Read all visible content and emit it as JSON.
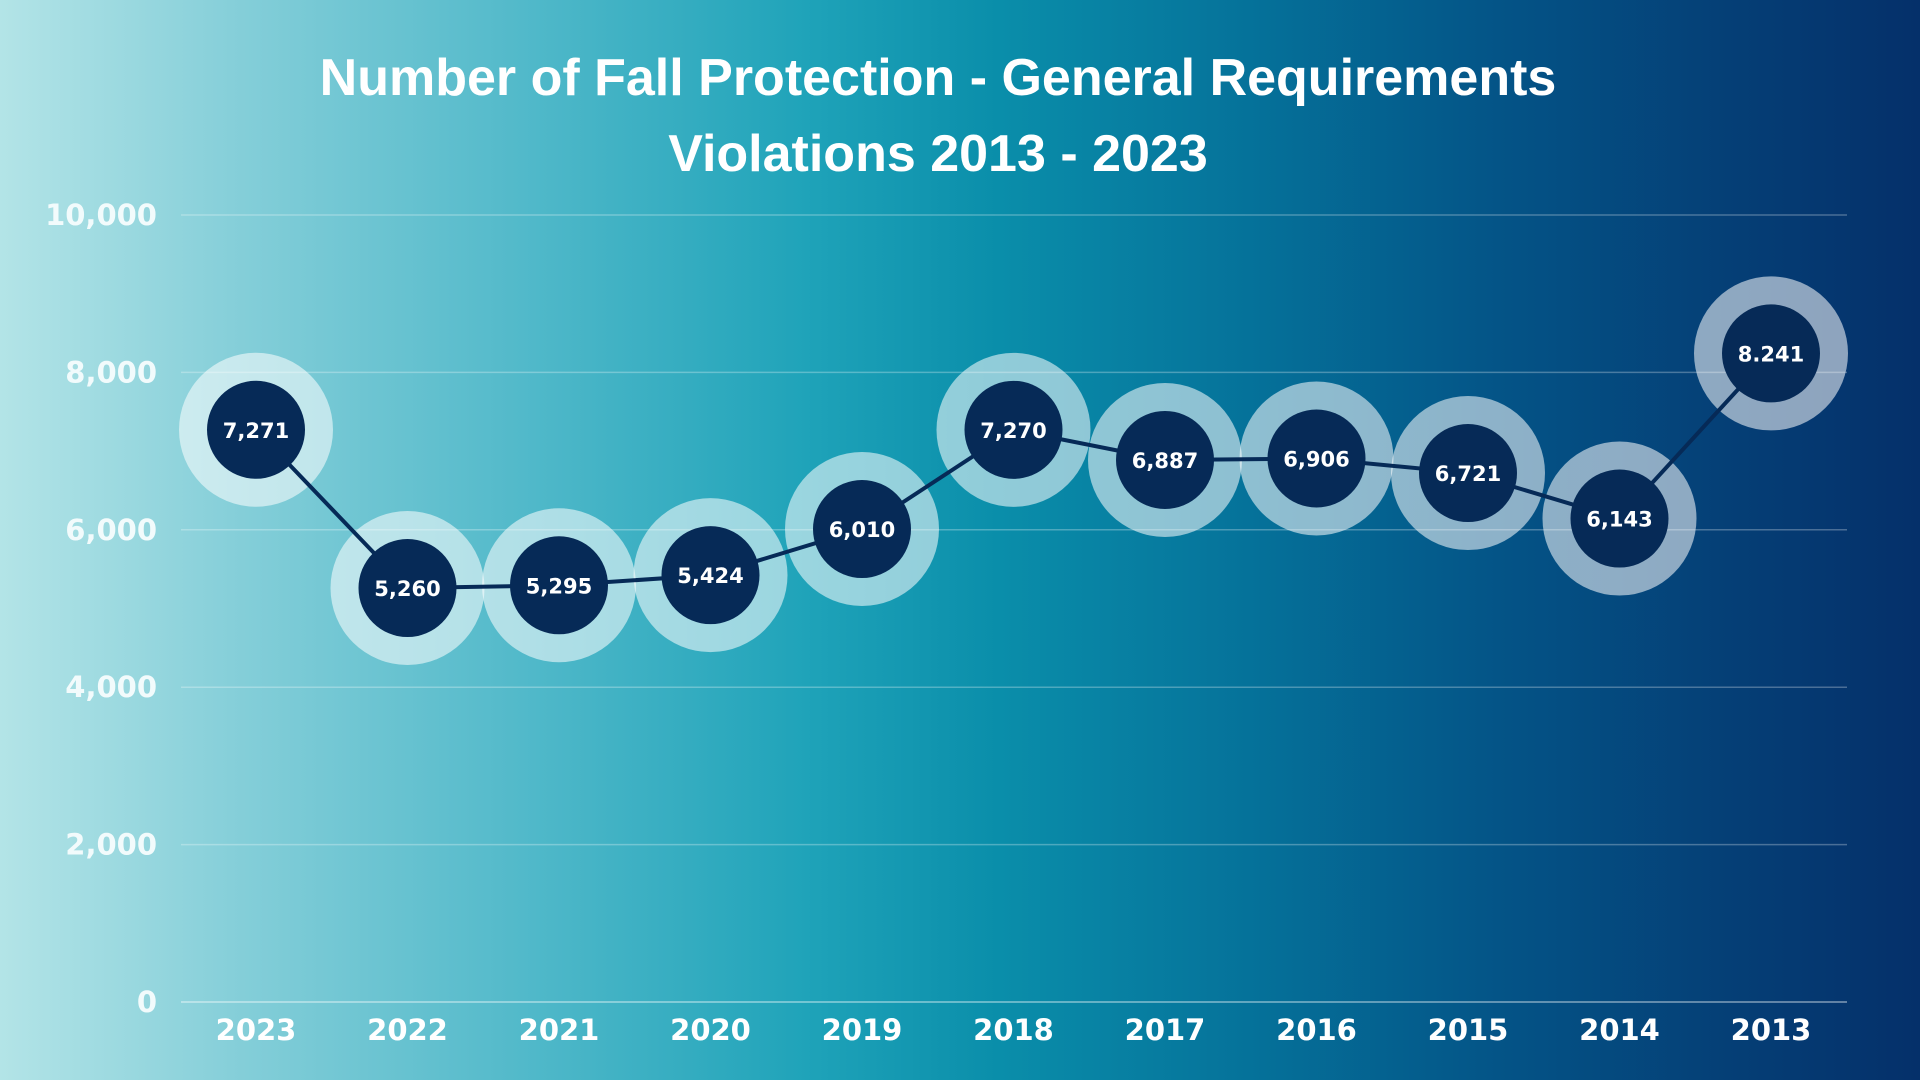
{
  "chart_data": {
    "type": "line",
    "title_line1": "Number of Fall Protection - General Requirements",
    "title_line2": "Violations 2013 - 2023",
    "xlabel": "",
    "ylabel": "",
    "categories": [
      "2023",
      "2022",
      "2021",
      "2020",
      "2019",
      "2018",
      "2017",
      "2016",
      "2015",
      "2014",
      "2013"
    ],
    "values": [
      7271,
      5260,
      5295,
      5424,
      6010,
      7270,
      6887,
      6906,
      6721,
      6143,
      8241
    ],
    "data_labels": [
      "7,271",
      "5,260",
      "5,295",
      "5,424",
      "6,010",
      "7,270",
      "6,887",
      "6,906",
      "6,721",
      "6,143",
      "8.241"
    ],
    "ylim": [
      0,
      10000
    ],
    "yticks": [
      0,
      2000,
      4000,
      6000,
      8000,
      10000
    ],
    "ytick_labels": [
      "0",
      "2,000",
      "4,000",
      "6,000",
      "8,000",
      "10,000"
    ],
    "grid": true,
    "legend": "none",
    "colors": {
      "marker": "#062a57",
      "line": "#062a57",
      "ring": "#ffffff",
      "grid": "#ffffff",
      "text": "#ffffff"
    }
  }
}
